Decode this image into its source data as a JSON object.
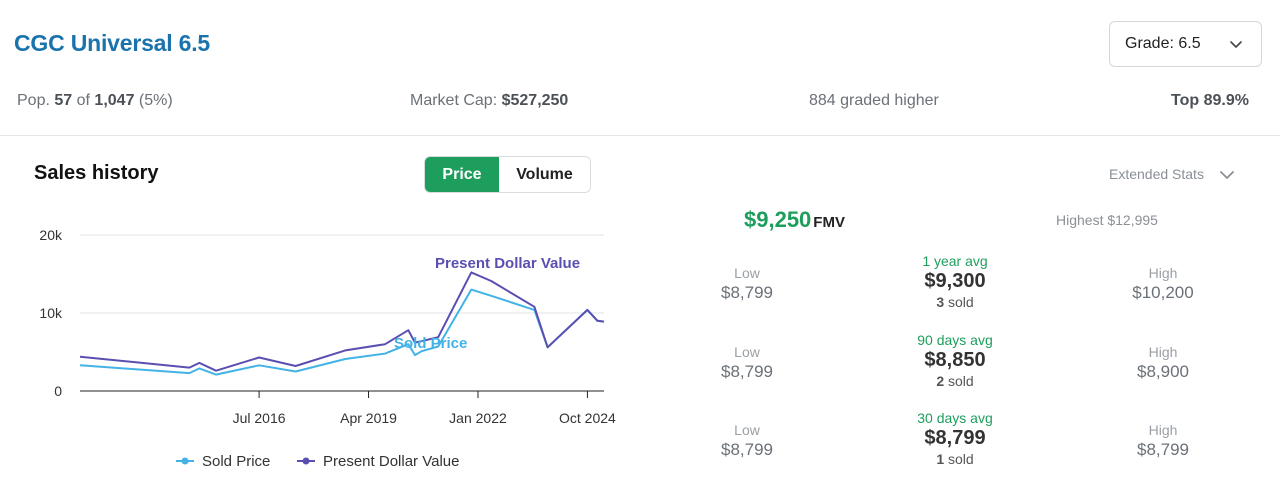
{
  "header": {
    "title": "CGC Universal 6.5",
    "grade_select_label": "Grade: 6.5"
  },
  "stats": {
    "pop_label": "Pop.",
    "pop_value": "57",
    "pop_of": "of",
    "pop_total": "1,047",
    "pop_pct": "(5%)",
    "market_cap_label": "Market Cap:",
    "market_cap_value": "$527,250",
    "graded_higher": "884 graded higher",
    "top": "Top 89.9%"
  },
  "sales_history": {
    "title": "Sales history",
    "toggle": {
      "price": "Price",
      "volume": "Volume"
    },
    "extended_stats": "Extended Stats"
  },
  "chart_data": {
    "type": "line",
    "title": "",
    "xlabel": "",
    "ylabel": "",
    "ylim": [
      0,
      20000
    ],
    "y_ticks": [
      "20k",
      "10k",
      "0"
    ],
    "x_ticks": [
      "Jul 2016",
      "Apr 2019",
      "Jan 2022",
      "Oct 2024"
    ],
    "grid": true,
    "legend": "bottom",
    "series": [
      {
        "name": "Sold Price",
        "color": "#43b3e6",
        "points": [
          [
            "2012-01",
            3300
          ],
          [
            "2014-10",
            2300
          ],
          [
            "2015-01",
            2900
          ],
          [
            "2015-06",
            2100
          ],
          [
            "2016-07",
            3300
          ],
          [
            "2017-06",
            2500
          ],
          [
            "2018-09",
            4100
          ],
          [
            "2019-09",
            4800
          ],
          [
            "2020-04",
            6000
          ],
          [
            "2020-06",
            4600
          ],
          [
            "2020-08",
            5100
          ],
          [
            "2021-01",
            5700
          ],
          [
            "2021-11",
            13000
          ],
          [
            "2022-05",
            12200
          ],
          [
            "2023-06",
            10400
          ],
          [
            "2023-10",
            5600
          ],
          [
            "2024-10",
            10400
          ],
          [
            "2025-01",
            9000
          ],
          [
            "2025-03",
            8900
          ]
        ]
      },
      {
        "name": "Present Dollar Value",
        "color": "#5a4fb0",
        "points": [
          [
            "2012-01",
            4400
          ],
          [
            "2014-10",
            3000
          ],
          [
            "2015-01",
            3600
          ],
          [
            "2015-06",
            2600
          ],
          [
            "2016-07",
            4300
          ],
          [
            "2017-06",
            3200
          ],
          [
            "2018-09",
            5200
          ],
          [
            "2019-09",
            6000
          ],
          [
            "2020-04",
            7800
          ],
          [
            "2020-06",
            6200
          ],
          [
            "2020-08",
            6400
          ],
          [
            "2021-01",
            6900
          ],
          [
            "2021-11",
            15200
          ],
          [
            "2022-05",
            14100
          ],
          [
            "2023-06",
            10800
          ],
          [
            "2023-10",
            5600
          ],
          [
            "2024-10",
            10400
          ],
          [
            "2025-01",
            9000
          ],
          [
            "2025-03",
            8900
          ]
        ]
      }
    ],
    "annotations": [
      "Present Dollar Value",
      "Sold Price"
    ]
  },
  "fmv": {
    "value": "$9,250",
    "label": "FMV"
  },
  "highest": "Highest $12,995",
  "rows": [
    {
      "low_label": "Low",
      "low": "$8,799",
      "avg_label": "1 year avg",
      "avg": "$9,300",
      "sold_count": "3",
      "sold_label": "sold",
      "high_label": "High",
      "high": "$10,200"
    },
    {
      "low_label": "Low",
      "low": "$8,799",
      "avg_label": "90 days avg",
      "avg": "$8,850",
      "sold_count": "2",
      "sold_label": "sold",
      "high_label": "High",
      "high": "$8,900"
    },
    {
      "low_label": "Low",
      "low": "$8,799",
      "avg_label": "30 days avg",
      "avg": "$8,799",
      "sold_count": "1",
      "sold_label": "sold",
      "high_label": "High",
      "high": "$8,799"
    }
  ]
}
